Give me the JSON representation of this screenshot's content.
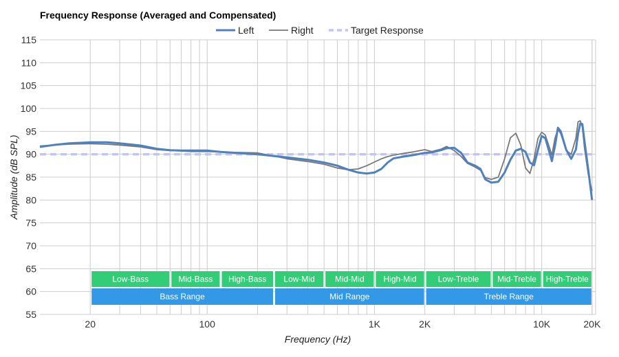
{
  "chart_data": {
    "type": "line",
    "title": "Frequency Response (Averaged and Compensated)",
    "xlabel": "Frequency (Hz)",
    "ylabel": "Amplitude (dB SPL)",
    "x_scale": "log",
    "xlim": [
      10,
      21000
    ],
    "ylim": [
      55,
      115
    ],
    "y_ticks": [
      55,
      60,
      65,
      70,
      75,
      80,
      85,
      90,
      95,
      100,
      105,
      110,
      115
    ],
    "x_ticks": [
      {
        "value": 20,
        "label": "20"
      },
      {
        "value": 100,
        "label": "100"
      },
      {
        "value": 1000,
        "label": "1K"
      },
      {
        "value": 2000,
        "label": "2K"
      },
      {
        "value": 10000,
        "label": "10K"
      },
      {
        "value": 20000,
        "label": "20K"
      }
    ],
    "grid": true,
    "legend_position": "top-center",
    "series": [
      {
        "name": "Left",
        "color": "#4f81bd",
        "style": "solid",
        "x": [
          10,
          12,
          15,
          20,
          25,
          30,
          40,
          50,
          60,
          70,
          80,
          100,
          120,
          150,
          200,
          250,
          300,
          400,
          500,
          600,
          700,
          800,
          900,
          1000,
          1100,
          1200,
          1300,
          1500,
          1700,
          2000,
          2200,
          2500,
          2700,
          3000,
          3300,
          3600,
          4000,
          4300,
          4600,
          5000,
          5500,
          6000,
          6500,
          7000,
          7500,
          8000,
          8500,
          9000,
          9500,
          10000,
          10500,
          11000,
          11500,
          12000,
          12500,
          13000,
          14000,
          15000,
          16000,
          16500,
          17000,
          17500,
          18000,
          19000,
          20000
        ],
        "values": [
          91.6,
          92,
          92.4,
          92.6,
          92.6,
          92.4,
          91.9,
          91.2,
          90.9,
          90.8,
          90.8,
          90.8,
          90.5,
          90.3,
          90,
          89.6,
          89.3,
          88.8,
          88.2,
          87.5,
          86.6,
          86,
          85.8,
          86,
          86.8,
          88.2,
          89.1,
          89.5,
          89.8,
          90.3,
          90.4,
          90.9,
          91.3,
          91.4,
          90.3,
          88.2,
          87.5,
          86.8,
          84.5,
          83.8,
          84,
          86,
          88.8,
          90.8,
          91.2,
          90.5,
          88.2,
          87.6,
          91,
          94,
          93.5,
          91,
          88.5,
          91.8,
          95.8,
          95,
          91,
          89,
          91,
          94.5,
          96.7,
          96.6,
          93,
          86.5,
          80
        ]
      },
      {
        "name": "Right",
        "color": "#777777",
        "style": "solid",
        "x": [
          10,
          12,
          15,
          20,
          25,
          30,
          40,
          50,
          60,
          70,
          80,
          100,
          120,
          150,
          200,
          250,
          300,
          400,
          500,
          600,
          700,
          800,
          900,
          1000,
          1100,
          1200,
          1300,
          1500,
          1700,
          2000,
          2200,
          2500,
          2700,
          3000,
          3300,
          3600,
          4000,
          4300,
          4600,
          5000,
          5500,
          6000,
          6500,
          7000,
          7500,
          8000,
          8500,
          9000,
          9500,
          10000,
          10500,
          11000,
          11500,
          12000,
          12500,
          13000,
          14000,
          15000,
          16000,
          16500,
          17000,
          17500,
          18000,
          19000,
          20000
        ],
        "values": [
          91.8,
          92,
          92.2,
          92.3,
          92.2,
          92,
          91.6,
          91,
          90.8,
          90.7,
          90.6,
          90.6,
          90.5,
          90.4,
          90.3,
          89.6,
          89,
          88.4,
          87.8,
          87,
          86.6,
          86.8,
          87.5,
          88.3,
          89,
          89.5,
          89.8,
          90.2,
          90.5,
          91,
          90.6,
          91.1,
          91.7,
          90.8,
          89.5,
          88,
          87.2,
          86.5,
          84.9,
          84.5,
          85,
          89,
          93.6,
          94.6,
          92,
          87,
          85.8,
          89,
          93.5,
          94.8,
          94.2,
          92,
          89.8,
          93.5,
          95.5,
          94.5,
          90.8,
          90,
          93.5,
          97.1,
          97.3,
          96,
          91.5,
          85.5,
          82
        ]
      },
      {
        "name": "Target Response",
        "color": "#c3c3f5",
        "style": "dashed",
        "x": [
          10,
          20000
        ],
        "values": [
          90,
          90
        ]
      }
    ],
    "bands": {
      "row1": [
        {
          "label": "Low-Bass",
          "from": 20,
          "to": 60
        },
        {
          "label": "Mid-Bass",
          "from": 60,
          "to": 120
        },
        {
          "label": "High-Bass",
          "from": 120,
          "to": 250
        },
        {
          "label": "Low-Mid",
          "from": 250,
          "to": 500
        },
        {
          "label": "Mid-Mid",
          "from": 500,
          "to": 1000
        },
        {
          "label": "High-Mid",
          "from": 1000,
          "to": 2000
        },
        {
          "label": "Low-Treble",
          "from": 2000,
          "to": 5000
        },
        {
          "label": "Mid-Treble",
          "from": 5000,
          "to": 10000
        },
        {
          "label": "High-Treble",
          "from": 10000,
          "to": 20000
        }
      ],
      "row2": [
        {
          "label": "Bass Range",
          "from": 20,
          "to": 250
        },
        {
          "label": "Mid Range",
          "from": 250,
          "to": 2000
        },
        {
          "label": "Treble Range",
          "from": 2000,
          "to": 20000
        }
      ],
      "row1_color": "#33cc77",
      "row2_color": "#3399e6"
    }
  }
}
